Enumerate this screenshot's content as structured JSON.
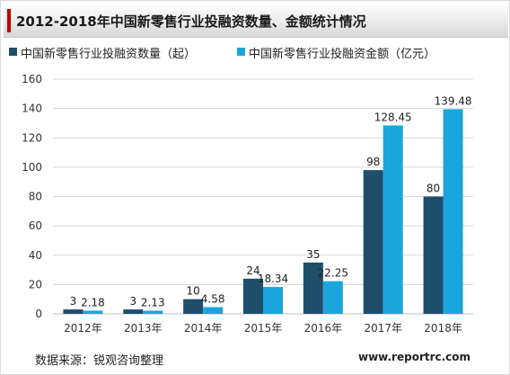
{
  "chart_data": {
    "type": "bar",
    "title": "2012-2018年中国新零售行业投融资数量、金额统计情况",
    "categories": [
      "2012年",
      "2013年",
      "2014年",
      "2015年",
      "2016年",
      "2017年",
      "2018年"
    ],
    "series": [
      {
        "name": "中国新零售行业投融资数量（起）",
        "color": "#1f4e6b",
        "values": [
          3,
          3,
          10,
          24,
          35,
          98,
          80
        ],
        "labels": [
          "3",
          "3",
          "10",
          "24",
          "35",
          "98",
          "80"
        ]
      },
      {
        "name": "中国新零售行业投融资金额（亿元）",
        "color": "#1aa6dc",
        "values": [
          2.18,
          2.13,
          4.58,
          18.34,
          22.25,
          128.45,
          139.48
        ],
        "labels": [
          "2.18",
          "2.13",
          "4.58",
          "18.34",
          "22.25",
          "128.45",
          "139.48"
        ]
      }
    ],
    "ylim": [
      0,
      160
    ],
    "yticks": [
      0,
      20,
      40,
      60,
      80,
      100,
      120,
      140,
      160
    ],
    "grid": true,
    "legend_position": "top-left"
  },
  "source_text": "数据来源：锐观咨询整理",
  "website_text": "www.reportrc.com",
  "accent_color": "#c00000"
}
